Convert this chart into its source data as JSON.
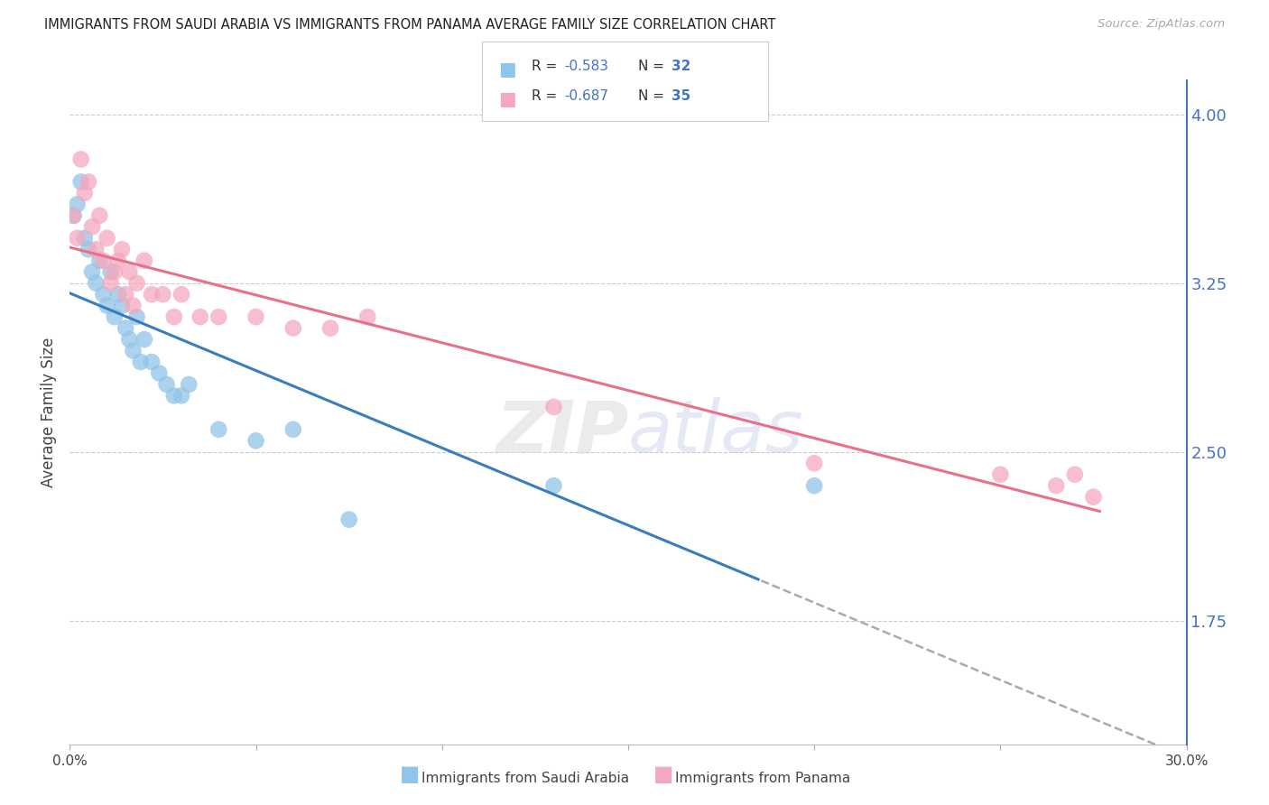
{
  "title": "IMMIGRANTS FROM SAUDI ARABIA VS IMMIGRANTS FROM PANAMA AVERAGE FAMILY SIZE CORRELATION CHART",
  "source": "Source: ZipAtlas.com",
  "ylabel": "Average Family Size",
  "xlim": [
    0.0,
    0.3
  ],
  "ylim": [
    1.2,
    4.15
  ],
  "yticks_right": [
    1.75,
    2.5,
    3.25,
    4.0
  ],
  "xtick_vals": [
    0.0,
    0.05,
    0.1,
    0.15,
    0.2,
    0.25,
    0.3
  ],
  "xtick_labels": [
    "0.0%",
    "",
    "",
    "",
    "",
    "",
    "30.0%"
  ],
  "label_blue": "Immigrants from Saudi Arabia",
  "label_pink": "Immigrants from Panama",
  "blue_scatter_color": "#90c4e8",
  "pink_scatter_color": "#f4a8be",
  "blue_line_color": "#3a7dbf",
  "pink_line_color": "#e8708a",
  "watermark": "ZIPAtlas",
  "saudi_x": [
    0.001,
    0.002,
    0.003,
    0.004,
    0.005,
    0.006,
    0.007,
    0.008,
    0.009,
    0.01,
    0.011,
    0.012,
    0.013,
    0.014,
    0.015,
    0.016,
    0.017,
    0.018,
    0.019,
    0.02,
    0.022,
    0.024,
    0.026,
    0.028,
    0.03,
    0.032,
    0.04,
    0.05,
    0.06,
    0.075,
    0.13,
    0.2
  ],
  "saudi_y": [
    3.55,
    3.6,
    3.7,
    3.45,
    3.4,
    3.3,
    3.25,
    3.35,
    3.2,
    3.15,
    3.3,
    3.1,
    3.2,
    3.15,
    3.05,
    3.0,
    2.95,
    3.1,
    2.9,
    3.0,
    2.9,
    2.85,
    2.8,
    2.75,
    2.75,
    2.8,
    2.6,
    2.55,
    2.6,
    2.2,
    2.35,
    2.35
  ],
  "panama_x": [
    0.001,
    0.002,
    0.003,
    0.004,
    0.005,
    0.006,
    0.007,
    0.008,
    0.009,
    0.01,
    0.011,
    0.012,
    0.013,
    0.014,
    0.015,
    0.016,
    0.017,
    0.018,
    0.02,
    0.022,
    0.025,
    0.028,
    0.03,
    0.035,
    0.04,
    0.05,
    0.06,
    0.07,
    0.08,
    0.13,
    0.2,
    0.25,
    0.265,
    0.27,
    0.275
  ],
  "panama_y": [
    3.55,
    3.45,
    3.8,
    3.65,
    3.7,
    3.5,
    3.4,
    3.55,
    3.35,
    3.45,
    3.25,
    3.3,
    3.35,
    3.4,
    3.2,
    3.3,
    3.15,
    3.25,
    3.35,
    3.2,
    3.2,
    3.1,
    3.2,
    3.1,
    3.1,
    3.1,
    3.05,
    3.05,
    3.1,
    2.7,
    2.45,
    2.4,
    2.35,
    2.4,
    2.3
  ]
}
